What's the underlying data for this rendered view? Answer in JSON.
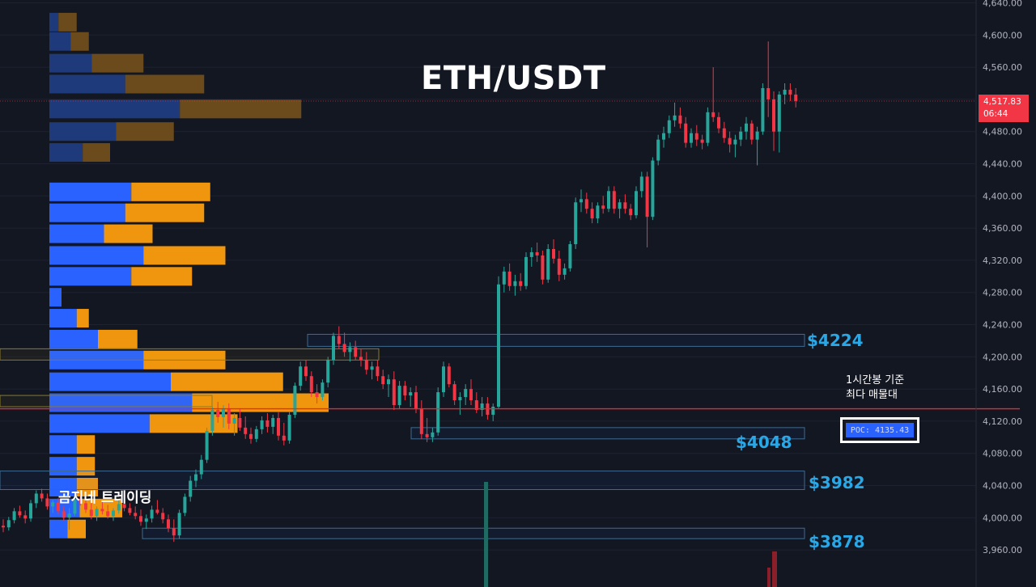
{
  "title": "ETH/USDT",
  "watermark": "곰지네 트레이딩",
  "price_axis": {
    "ticks": [
      "4,640.00",
      "4,600.00",
      "4,560.00",
      "4,520.00",
      "4,480.00",
      "4,440.00",
      "4,400.00",
      "4,360.00",
      "4,320.00",
      "4,280.00",
      "4,240.00",
      "4,200.00",
      "4,160.00",
      "4,120.00",
      "4,080.00",
      "4,040.00",
      "4,000.00",
      "3,960.00"
    ]
  },
  "current_price": {
    "value": "4,517.83",
    "countdown": "06:44"
  },
  "levels": [
    {
      "label": "$4224",
      "price": 4224
    },
    {
      "label": "$4048",
      "price": 4048
    },
    {
      "label": "$3982",
      "price": 3982
    },
    {
      "label": "$3878",
      "price": 3878
    }
  ],
  "poc": {
    "label": "POC: 4135.43",
    "note_line1": "1시간봉 기준",
    "note_line2": "최다 매물대"
  },
  "colors": {
    "background": "#131722",
    "up": "#26a69a",
    "down": "#f23645",
    "level_text": "#29a8e8",
    "poc_line": "#ff2020",
    "vp_buy": "#2962ff",
    "vp_sell": "#f0960e"
  },
  "chart_data": {
    "type": "candlestick",
    "ylim": [
      3940,
      4640
    ],
    "candles": [
      [
        3990,
        3998,
        3982,
        3988
      ],
      [
        3988,
        4001,
        3984,
        3997
      ],
      [
        3997,
        4012,
        3993,
        4008
      ],
      [
        4008,
        4015,
        4000,
        4003
      ],
      [
        4003,
        4009,
        3993,
        3999
      ],
      [
        3999,
        4022,
        3995,
        4018
      ],
      [
        4018,
        4034,
        4012,
        4030
      ],
      [
        4030,
        4036,
        4020,
        4024
      ],
      [
        4024,
        4030,
        4010,
        4014
      ],
      [
        4014,
        4022,
        4006,
        4019
      ],
      [
        4019,
        4024,
        4004,
        4008
      ],
      [
        4008,
        4014,
        3996,
        4000
      ],
      [
        4000,
        4012,
        3985,
        4005
      ],
      [
        4005,
        4025,
        4002,
        4022
      ],
      [
        4022,
        4030,
        4015,
        4018
      ],
      [
        4018,
        4026,
        4006,
        4010
      ],
      [
        4010,
        4018,
        3998,
        4002
      ],
      [
        4002,
        4014,
        3996,
        4011
      ],
      [
        4011,
        4020,
        4004,
        4008
      ],
      [
        4008,
        4016,
        3999,
        4002
      ],
      [
        4002,
        4012,
        3996,
        4009
      ],
      [
        4009,
        4022,
        4005,
        4017
      ],
      [
        4017,
        4025,
        4008,
        4012
      ],
      [
        4012,
        4018,
        4003,
        4006
      ],
      [
        4006,
        4014,
        3998,
        4002
      ],
      [
        4002,
        4010,
        3990,
        3995
      ],
      [
        3995,
        4004,
        3986,
        3999
      ],
      [
        3999,
        4015,
        3994,
        4010
      ],
      [
        4010,
        4022,
        4004,
        4006
      ],
      [
        4006,
        4012,
        3993,
        3998
      ],
      [
        3998,
        4004,
        3982,
        3987
      ],
      [
        3987,
        3998,
        3970,
        3978
      ],
      [
        3978,
        4010,
        3974,
        4006
      ],
      [
        4006,
        4030,
        4002,
        4026
      ],
      [
        4026,
        4052,
        4020,
        4046
      ],
      [
        4046,
        4060,
        4038,
        4054
      ],
      [
        4054,
        4078,
        4048,
        4072
      ],
      [
        4072,
        4112,
        4068,
        4108
      ],
      [
        4108,
        4138,
        4102,
        4134
      ],
      [
        4134,
        4144,
        4118,
        4125
      ],
      [
        4125,
        4140,
        4112,
        4136
      ],
      [
        4136,
        4142,
        4110,
        4117
      ],
      [
        4117,
        4130,
        4102,
        4124
      ],
      [
        4124,
        4136,
        4108,
        4112
      ],
      [
        4112,
        4126,
        4098,
        4104
      ],
      [
        4104,
        4112,
        4092,
        4098
      ],
      [
        4098,
        4114,
        4094,
        4110
      ],
      [
        4110,
        4126,
        4104,
        4121
      ],
      [
        4121,
        4130,
        4106,
        4113
      ],
      [
        4113,
        4128,
        4104,
        4124
      ],
      [
        4124,
        4132,
        4096,
        4102
      ],
      [
        4102,
        4118,
        4090,
        4096
      ],
      [
        4096,
        4132,
        4092,
        4128
      ],
      [
        4128,
        4168,
        4124,
        4164
      ],
      [
        4164,
        4194,
        4158,
        4188
      ],
      [
        4188,
        4196,
        4170,
        4176
      ],
      [
        4176,
        4182,
        4150,
        4156
      ],
      [
        4156,
        4166,
        4142,
        4150
      ],
      [
        4150,
        4172,
        4146,
        4168
      ],
      [
        4168,
        4200,
        4162,
        4196
      ],
      [
        4196,
        4230,
        4190,
        4226
      ],
      [
        4226,
        4238,
        4210,
        4216
      ],
      [
        4216,
        4230,
        4200,
        4206
      ],
      [
        4206,
        4218,
        4194,
        4212
      ],
      [
        4212,
        4220,
        4196,
        4200
      ],
      [
        4200,
        4210,
        4188,
        4196
      ],
      [
        4196,
        4206,
        4178,
        4184
      ],
      [
        4184,
        4194,
        4172,
        4188
      ],
      [
        4188,
        4196,
        4170,
        4176
      ],
      [
        4176,
        4184,
        4160,
        4166
      ],
      [
        4166,
        4178,
        4150,
        4172
      ],
      [
        4172,
        4182,
        4134,
        4140
      ],
      [
        4140,
        4170,
        4136,
        4164
      ],
      [
        4164,
        4170,
        4146,
        4152
      ],
      [
        4152,
        4162,
        4138,
        4156
      ],
      [
        4156,
        4164,
        4130,
        4136
      ],
      [
        4136,
        4146,
        4098,
        4104
      ],
      [
        4104,
        4124,
        4094,
        4100
      ],
      [
        4100,
        4112,
        4094,
        4106
      ],
      [
        4106,
        4162,
        4102,
        4156
      ],
      [
        4156,
        4194,
        4150,
        4188
      ],
      [
        4188,
        4192,
        4162,
        4166
      ],
      [
        4166,
        4170,
        4140,
        4146
      ],
      [
        4146,
        4156,
        4128,
        4150
      ],
      [
        4150,
        4166,
        4140,
        4160
      ],
      [
        4160,
        4172,
        4140,
        4146
      ],
      [
        4146,
        4156,
        4130,
        4134
      ],
      [
        4134,
        4150,
        4126,
        4142
      ],
      [
        4142,
        4150,
        4122,
        4128
      ],
      [
        4128,
        4142,
        4120,
        4138
      ],
      [
        4138,
        4300,
        4136,
        4290
      ],
      [
        4290,
        4312,
        4280,
        4306
      ],
      [
        4306,
        4316,
        4282,
        4288
      ],
      [
        4288,
        4302,
        4276,
        4294
      ],
      [
        4294,
        4304,
        4282,
        4288
      ],
      [
        4288,
        4330,
        4284,
        4324
      ],
      [
        4324,
        4336,
        4312,
        4330
      ],
      [
        4330,
        4342,
        4318,
        4326
      ],
      [
        4326,
        4332,
        4290,
        4296
      ],
      [
        4296,
        4340,
        4292,
        4334
      ],
      [
        4334,
        4346,
        4316,
        4322
      ],
      [
        4322,
        4332,
        4294,
        4302
      ],
      [
        4302,
        4316,
        4296,
        4310
      ],
      [
        4310,
        4344,
        4306,
        4340
      ],
      [
        4340,
        4398,
        4334,
        4392
      ],
      [
        4392,
        4408,
        4380,
        4396
      ],
      [
        4396,
        4404,
        4378,
        4384
      ],
      [
        4384,
        4392,
        4366,
        4372
      ],
      [
        4372,
        4392,
        4366,
        4388
      ],
      [
        4388,
        4400,
        4378,
        4384
      ],
      [
        4384,
        4412,
        4380,
        4406
      ],
      [
        4406,
        4412,
        4378,
        4384
      ],
      [
        4384,
        4396,
        4372,
        4392
      ],
      [
        4392,
        4402,
        4378,
        4384
      ],
      [
        4384,
        4390,
        4370,
        4376
      ],
      [
        4376,
        4412,
        4372,
        4406
      ],
      [
        4406,
        4430,
        4398,
        4424
      ],
      [
        4424,
        4430,
        4336,
        4374
      ],
      [
        4374,
        4448,
        4370,
        4444
      ],
      [
        4444,
        4476,
        4438,
        4470
      ],
      [
        4470,
        4486,
        4460,
        4478
      ],
      [
        4478,
        4500,
        4472,
        4494
      ],
      [
        4494,
        4516,
        4486,
        4500
      ],
      [
        4500,
        4510,
        4484,
        4490
      ],
      [
        4490,
        4498,
        4460,
        4466
      ],
      [
        4466,
        4484,
        4460,
        4478
      ],
      [
        4478,
        4488,
        4462,
        4470
      ],
      [
        4470,
        4476,
        4458,
        4466
      ],
      [
        4466,
        4510,
        4462,
        4504
      ],
      [
        4504,
        4560,
        4492,
        4498
      ],
      [
        4498,
        4504,
        4478,
        4484
      ],
      [
        4484,
        4492,
        4466,
        4472
      ],
      [
        4472,
        4480,
        4454,
        4464
      ],
      [
        4464,
        4476,
        4448,
        4470
      ],
      [
        4470,
        4486,
        4462,
        4480
      ],
      [
        4480,
        4498,
        4470,
        4490
      ],
      [
        4490,
        4494,
        4464,
        4470
      ],
      [
        4470,
        4486,
        4438,
        4480
      ],
      [
        4480,
        4540,
        4476,
        4534
      ],
      [
        4534,
        4592,
        4498,
        4520
      ],
      [
        4520,
        4530,
        4456,
        4480
      ],
      [
        4480,
        4530,
        4454,
        4526
      ],
      [
        4526,
        4540,
        4514,
        4532
      ],
      [
        4532,
        4540,
        4518,
        4526
      ],
      [
        4526,
        4534,
        4510,
        4518
      ]
    ],
    "volume_profile": [
      [
        4616,
        0.3,
        0.6
      ],
      [
        4592,
        0.7,
        0.6
      ],
      [
        4565,
        1.4,
        1.7
      ],
      [
        4539,
        2.5,
        2.6
      ],
      [
        4508,
        4.3,
        4.0
      ],
      [
        4480,
        2.2,
        1.9
      ],
      [
        4454,
        1.1,
        0.9
      ],
      [
        4405,
        2.7,
        2.6
      ],
      [
        4379,
        2.5,
        2.6
      ],
      [
        4353,
        1.8,
        1.6
      ],
      [
        4326,
        3.1,
        2.7
      ],
      [
        4300,
        2.7,
        2.0
      ],
      [
        4274,
        0.4,
        0.0
      ],
      [
        4248,
        0.9,
        0.4
      ],
      [
        4222,
        1.6,
        1.3
      ],
      [
        4196,
        3.1,
        2.7
      ],
      [
        4169,
        4.0,
        3.7
      ],
      [
        4143,
        4.7,
        4.5
      ],
      [
        4117,
        3.3,
        2.9
      ],
      [
        4091,
        0.9,
        0.6
      ],
      [
        4064,
        0.9,
        0.6
      ],
      [
        4038,
        0.9,
        0.7
      ],
      [
        4012,
        1.0,
        1.4
      ],
      [
        3986,
        0.6,
        0.6
      ]
    ],
    "poc_price": 4135.43
  }
}
